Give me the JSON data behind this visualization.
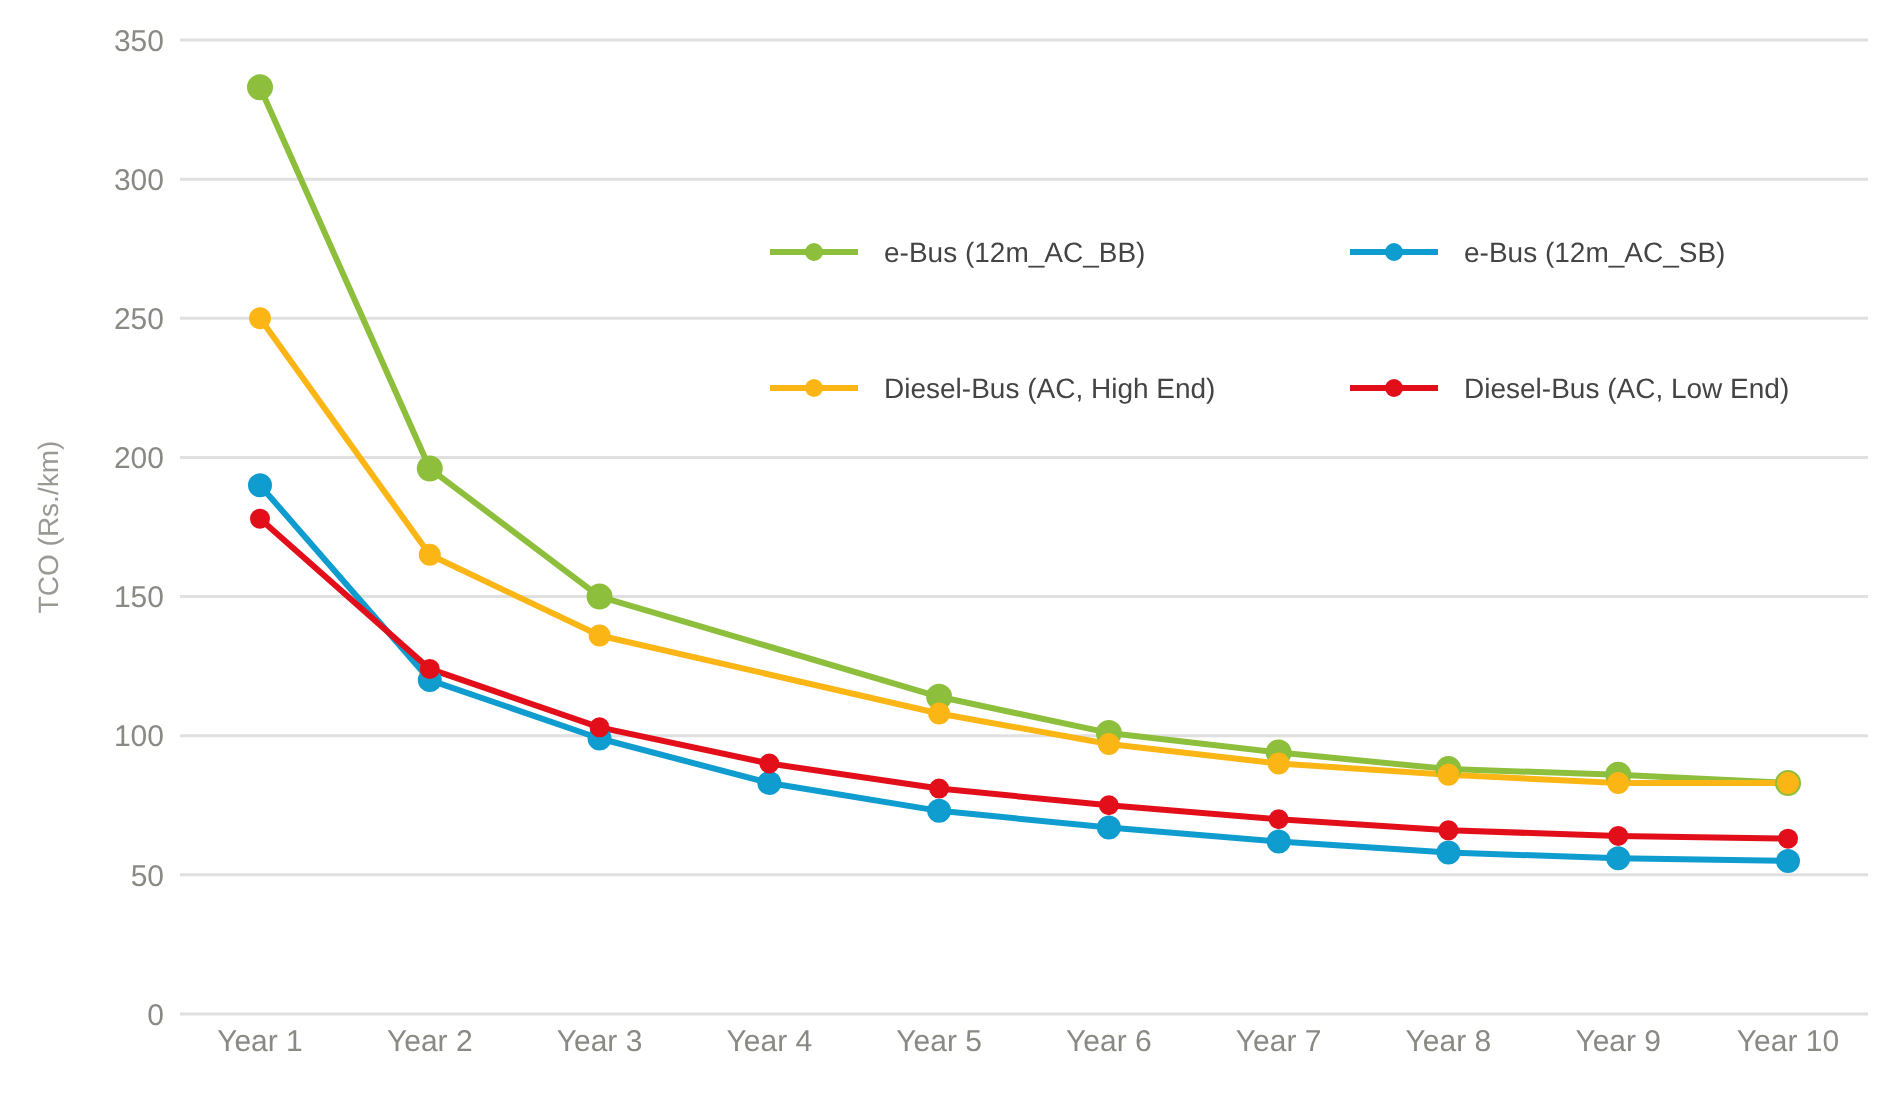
{
  "chart_data": {
    "type": "line",
    "ylabel": "TCO (Rs./km)",
    "categories": [
      "Year 1",
      "Year 2",
      "Year 3",
      "Year 4",
      "Year 5",
      "Year 6",
      "Year 7",
      "Year 8",
      "Year 9",
      "Year 10"
    ],
    "series": [
      {
        "name": "e-Bus (12m_AC_BB)",
        "color": "#8dbf3c",
        "values": [
          333,
          196,
          150,
          null,
          114,
          101,
          94,
          88,
          86,
          83
        ]
      },
      {
        "name": "e-Bus (12m_AC_SB)",
        "color": "#0f9ccf",
        "values": [
          190,
          120,
          99,
          83,
          73,
          67,
          62,
          58,
          56,
          55
        ]
      },
      {
        "name": "Diesel-Bus (AC, High End)",
        "color": "#fbb616",
        "values": [
          250,
          165,
          136,
          null,
          108,
          97,
          90,
          86,
          83,
          83
        ]
      },
      {
        "name": "Diesel-Bus (AC, Low End)",
        "color": "#e20f1a",
        "values": [
          178,
          124,
          103,
          90,
          81,
          75,
          70,
          66,
          64,
          63
        ]
      }
    ],
    "ylim": [
      0,
      350
    ],
    "yticks": [
      0,
      50,
      100,
      150,
      200,
      250,
      300,
      350
    ],
    "grid": "y",
    "legend": "top right",
    "marker": "circle",
    "line_style": "solid"
  }
}
